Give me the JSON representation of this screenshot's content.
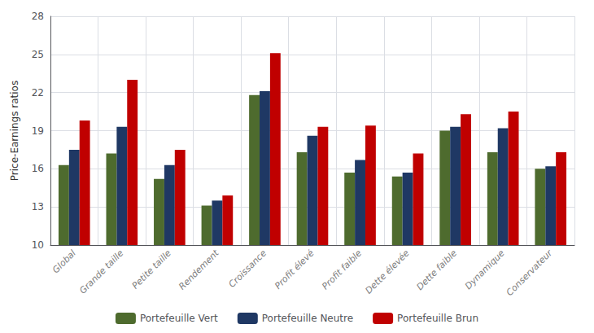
{
  "chart_data": {
    "type": "bar",
    "categories": [
      "Global",
      "Grande taille",
      "Petite taille",
      "Rendement",
      "Croissance",
      "Profit élevé",
      "Profit faible",
      "Dette élevée",
      "Dette faible",
      "Dynamique",
      "Conservateur"
    ],
    "series": [
      {
        "name": "Portefeuille Vert",
        "color": "#4e6b2e",
        "values": [
          16.3,
          17.2,
          15.2,
          13.1,
          21.8,
          17.3,
          15.7,
          15.4,
          19.0,
          17.3,
          16.0
        ]
      },
      {
        "name": "Portefeuille Neutre",
        "color": "#1f3864",
        "values": [
          17.5,
          19.3,
          16.3,
          13.5,
          22.1,
          18.6,
          16.7,
          15.7,
          19.3,
          19.2,
          16.2
        ]
      },
      {
        "name": "Portefeuille Brun",
        "color": "#c00000",
        "values": [
          19.8,
          23.0,
          17.5,
          13.9,
          25.1,
          19.3,
          19.4,
          17.2,
          20.3,
          20.5,
          17.3
        ]
      }
    ],
    "ylabel": "Price-Earnings ratios",
    "ylim": [
      10,
      28
    ],
    "yticks": [
      10,
      13,
      16,
      19,
      22,
      25,
      28
    ],
    "grid": true,
    "legend": "bottom"
  }
}
